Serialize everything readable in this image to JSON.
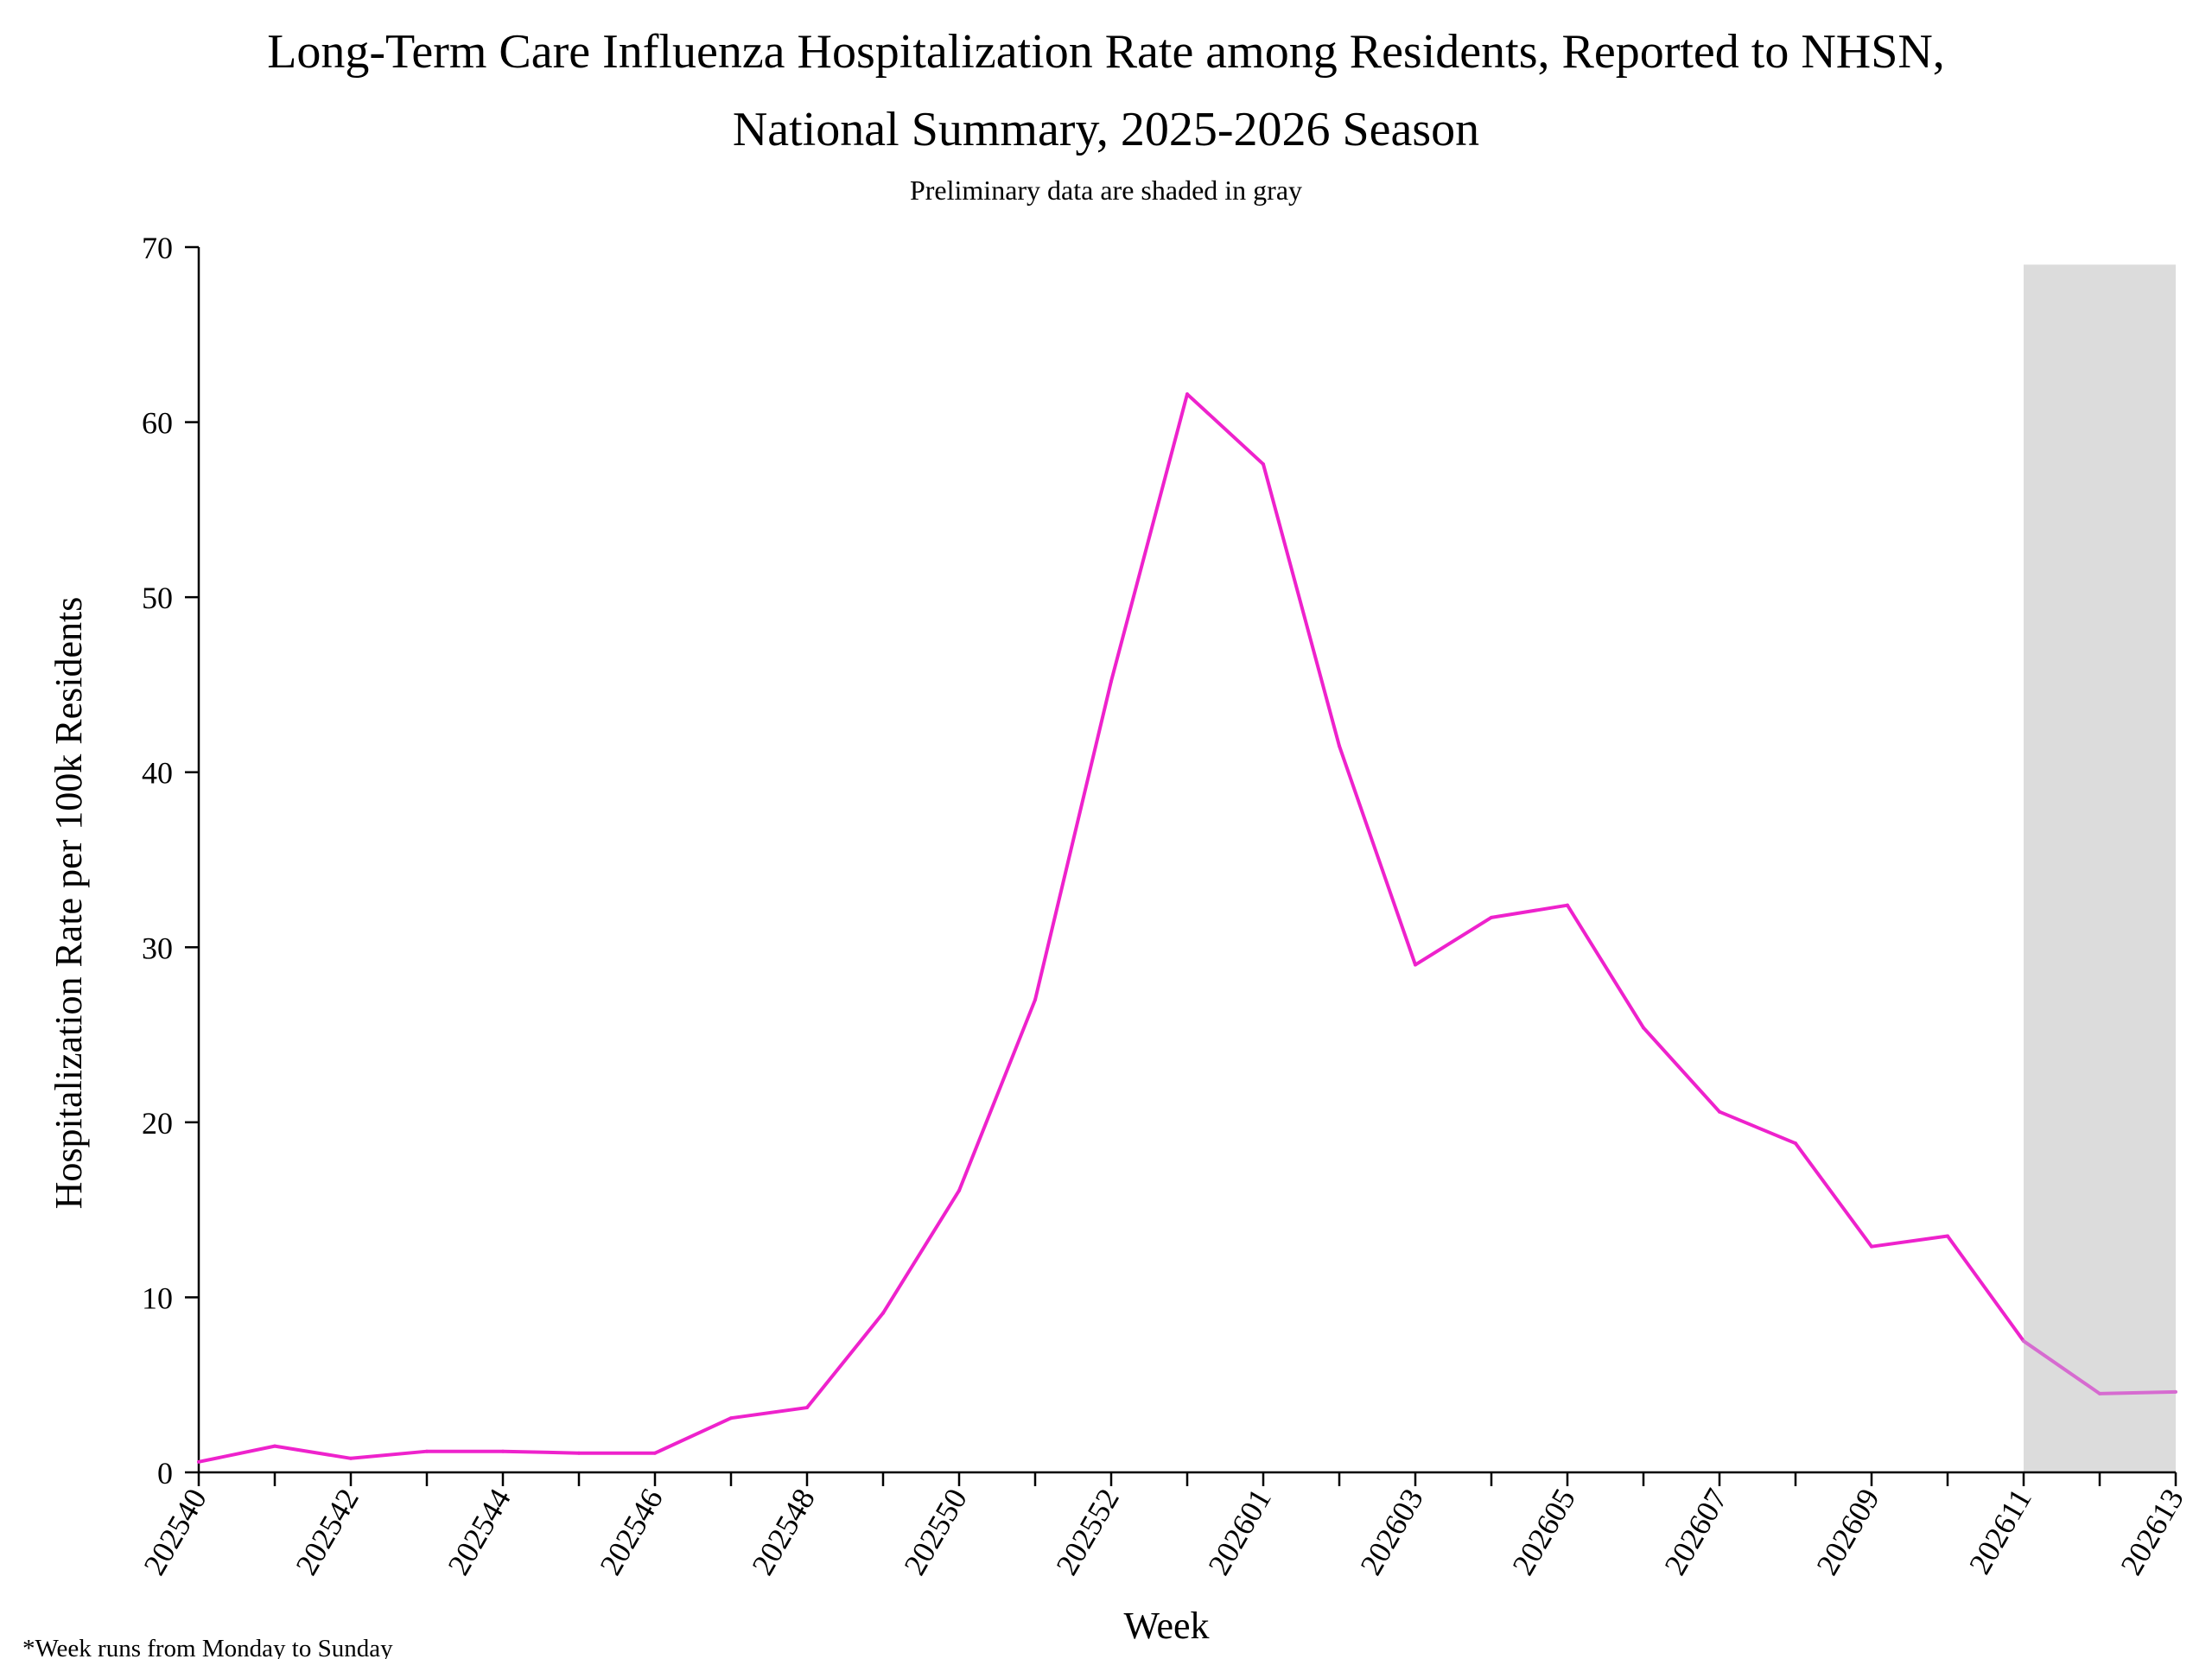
{
  "chart_data": {
    "type": "line",
    "title_line1": "Long-Term Care Influenza Hospitalization Rate among Residents, Reported to NHSN,",
    "title_line2": "National Summary, 2025-2026 Season",
    "subtitle": "Preliminary data are shaded in gray",
    "xlabel": "Week",
    "ylabel": "Hospitalization Rate per 100k Residents",
    "footnote": "*Week runs from Monday to Sunday",
    "ylim": [
      0,
      70
    ],
    "yticks": [
      0,
      10,
      20,
      30,
      40,
      50,
      60,
      70
    ],
    "ytick_labels": [
      "0",
      "10",
      "20",
      "30",
      "40",
      "50",
      "60",
      "70"
    ],
    "weeks": [
      "202540",
      "202541",
      "202542",
      "202543",
      "202544",
      "202545",
      "202546",
      "202547",
      "202548",
      "202549",
      "202550",
      "202551",
      "202552",
      "202553",
      "202601",
      "202602",
      "202603",
      "202604",
      "202605",
      "202606",
      "202607",
      "202608",
      "202609",
      "202610",
      "202611",
      "202612",
      "202613"
    ],
    "xtick_labels": [
      "202540",
      "202542",
      "202544",
      "202546",
      "202548",
      "202550",
      "202552",
      "202601",
      "202603",
      "202605",
      "202607",
      "202609",
      "202611",
      "202613"
    ],
    "grid": false,
    "series": [
      {
        "values": [
          0.6,
          1.5,
          0.8,
          1.2,
          1.2,
          1.1,
          1.1,
          3.1,
          3.7,
          9.1,
          16.1,
          27.0,
          45.2,
          61.6,
          57.6,
          41.5,
          29.0,
          31.7,
          32.4,
          25.4,
          20.6,
          18.8,
          12.9,
          13.5,
          7.5,
          4.5,
          4.6
        ],
        "color": "#ee22cc",
        "preliminary_color": "#d66bd0"
      }
    ],
    "preliminary_start_index": 24,
    "preliminary_shade_color": "#dcdcdc",
    "preliminary_shade_top": 69
  }
}
